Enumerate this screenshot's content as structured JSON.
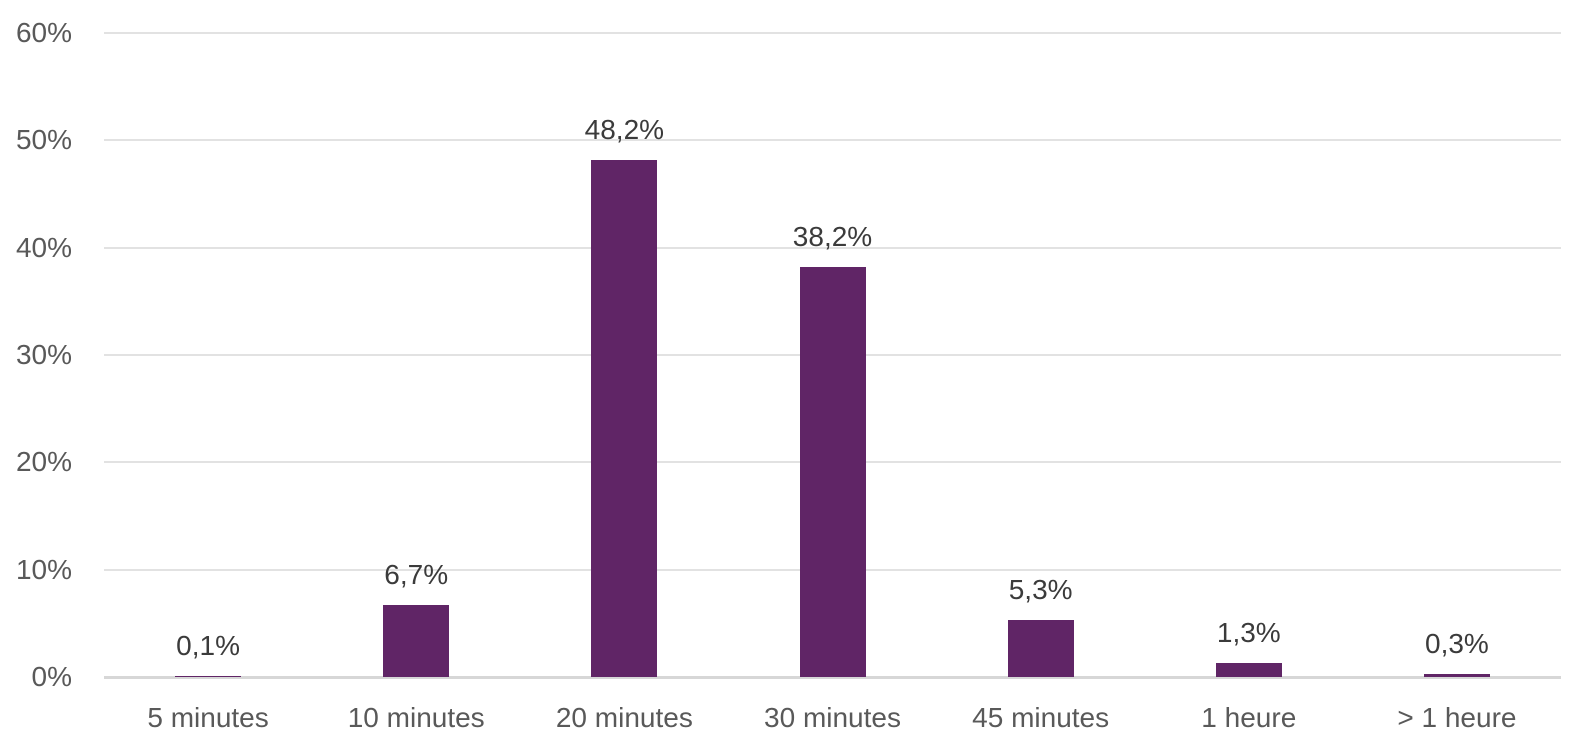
{
  "chart_data": {
    "type": "bar",
    "title": "",
    "xlabel": "",
    "ylabel": "",
    "categories": [
      "5 minutes",
      "10 minutes",
      "20 minutes",
      "30 minutes",
      "45 minutes",
      "1 heure",
      "> 1 heure"
    ],
    "values": [
      0.1,
      6.7,
      48.2,
      38.2,
      5.3,
      1.3,
      0.3
    ],
    "value_labels": [
      "0,1%",
      "6,7%",
      "48,2%",
      "38,2%",
      "5,3%",
      "1,3%",
      "0,3%"
    ],
    "ylim": [
      0,
      60
    ],
    "yticks": [
      0,
      10,
      20,
      30,
      40,
      50,
      60
    ],
    "ytick_labels": [
      "0%",
      "10%",
      "20%",
      "30%",
      "40%",
      "50%",
      "60%"
    ],
    "grid": true,
    "legend": false,
    "colors": {
      "bar": "#602566",
      "gridline": "#e2e2e2",
      "axis_line": "#d7d7d7",
      "tick_label": "#595959",
      "category_label": "#595959",
      "value_label": "#3b3b3b",
      "background": "#ffffff"
    }
  }
}
